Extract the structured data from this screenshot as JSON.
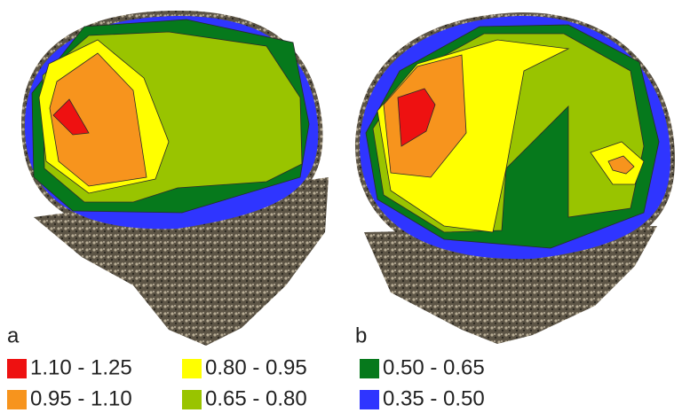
{
  "panels": [
    {
      "label": "a"
    },
    {
      "label": "b"
    }
  ],
  "legend": {
    "items": [
      {
        "label": "1.10 - 1.25",
        "color": "#ee1111"
      },
      {
        "label": "0.80 - 0.95",
        "color": "#ffff00"
      },
      {
        "label": "0.50 - 0.65",
        "color": "#06791c"
      },
      {
        "label": "0.95 - 1.10",
        "color": "#f7941d"
      },
      {
        "label": "0.65 - 0.80",
        "color": "#99c400"
      },
      {
        "label": "0.35 - 0.50",
        "color": "#2f35ff"
      }
    ]
  }
}
